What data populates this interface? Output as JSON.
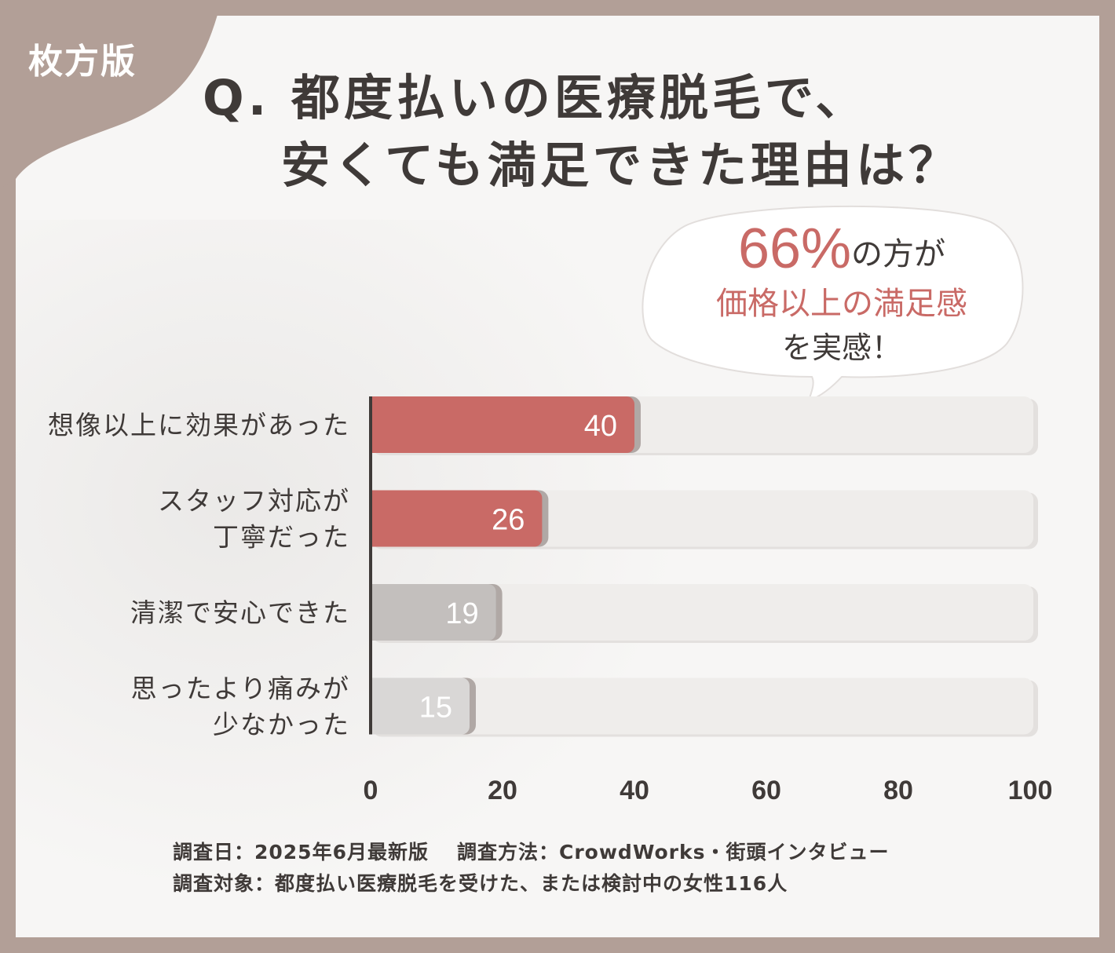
{
  "badge": {
    "label": "枚方版"
  },
  "title": {
    "line1": "Q. 都度払いの医療脱毛で、",
    "line2": "安くても満足できた理由は？"
  },
  "callout": {
    "percent": "66%",
    "percent_suffix": "の方が",
    "line2": "価格以上の満足感",
    "line3": "を実感！"
  },
  "colors": {
    "accent": "#c96a66",
    "gray_bar": "#c3bfbd",
    "light_bar": "#d9d7d6",
    "track": "#efedeb",
    "text": "#3f3a38",
    "frame": "#b29f97"
  },
  "chart_data": {
    "type": "bar",
    "orientation": "horizontal",
    "categories": [
      [
        "想像以上に効果があった"
      ],
      [
        "スタッフ対応が",
        "丁寧だった"
      ],
      [
        "清潔で安心できた"
      ],
      [
        "思ったより痛みが",
        "少なかった"
      ]
    ],
    "values": [
      40,
      26,
      19,
      15
    ],
    "bar_colors": [
      "#c96a66",
      "#c96a66",
      "#c3bfbd",
      "#d9d7d6"
    ],
    "xlim": [
      0,
      100
    ],
    "xticks": [
      "0",
      "20",
      "40",
      "60",
      "80",
      "100"
    ],
    "grid": false,
    "data_labels": true
  },
  "footer": {
    "line1_a": "調査日：2025年6月最新版",
    "line1_b": "調査方法：CrowdWorks・街頭インタビュー",
    "line2": "調査対象：都度払い医療脱毛を受けた、または検討中の女性116人"
  }
}
